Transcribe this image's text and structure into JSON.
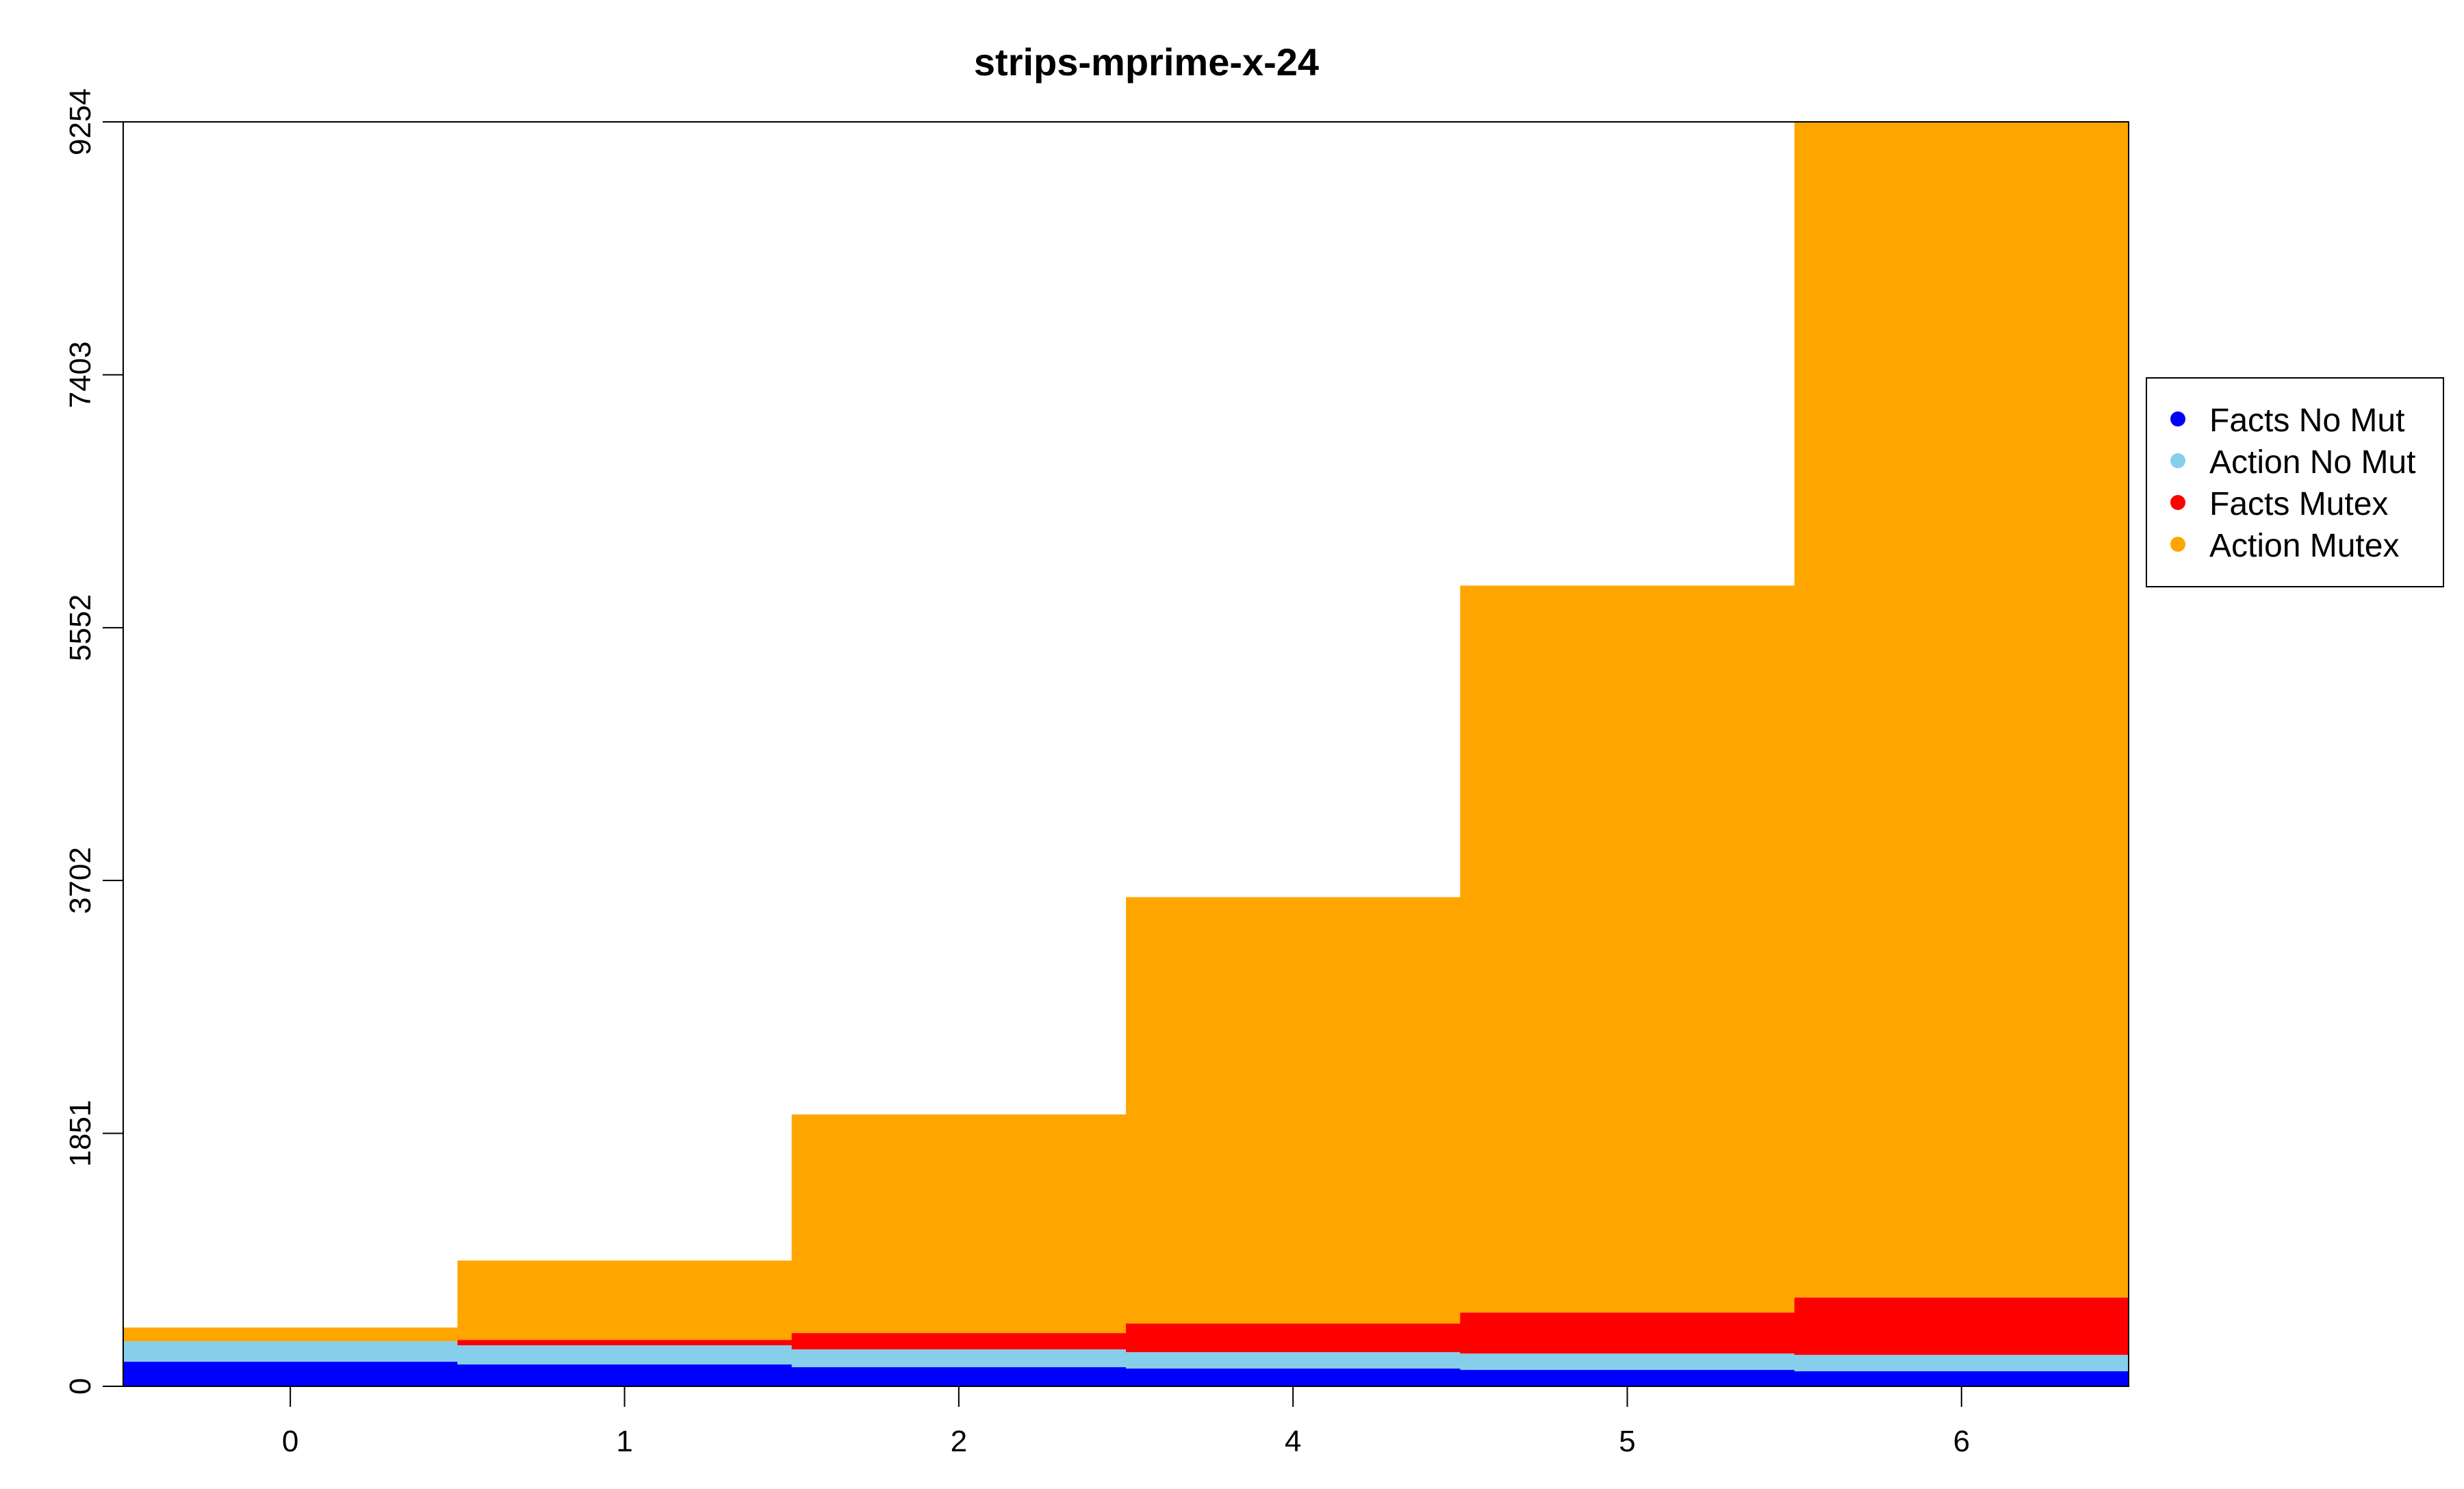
{
  "chart_data": {
    "type": "area",
    "title": "strips-mprime-x-24",
    "xlabel": "",
    "ylabel": "",
    "categories": [
      "0",
      "1",
      "2",
      "4",
      "5",
      "6"
    ],
    "ylim": [
      0,
      9254
    ],
    "yticks": [
      0,
      1851,
      3702,
      5552,
      7403,
      9254
    ],
    "stacked": true,
    "legend_position": "right",
    "series": [
      {
        "name": "Facts No Mut",
        "color": "#0000ff",
        "values": [
          180,
          160,
          140,
          130,
          120,
          110
        ]
      },
      {
        "name": "Action No Mut",
        "color": "#87ceeb",
        "values": [
          150,
          140,
          130,
          120,
          120,
          120
        ]
      },
      {
        "name": "Facts Mutex",
        "color": "#ff0000",
        "values": [
          0,
          40,
          120,
          210,
          300,
          420
        ]
      },
      {
        "name": "Action Mutex",
        "color": "#ffa500",
        "values": [
          100,
          580,
          1600,
          3120,
          5320,
          8604
        ]
      }
    ]
  }
}
